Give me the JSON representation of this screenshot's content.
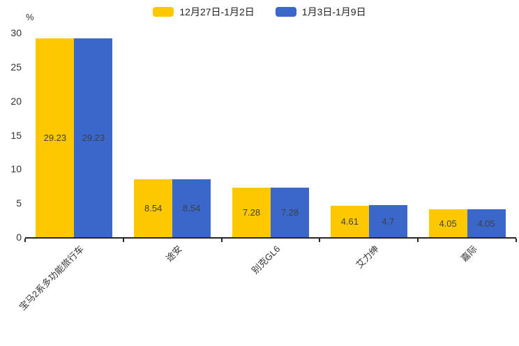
{
  "chart_data": {
    "type": "bar",
    "title": "",
    "xlabel": "",
    "ylabel": "%",
    "categories": [
      "宝马2系多功能旅行车",
      "途安",
      "别克GL6",
      "艾力绅",
      "嘉际"
    ],
    "series": [
      {
        "name": "12月27日-1月2日",
        "color": "#FDC800",
        "values": [
          29.23,
          8.54,
          7.28,
          4.61,
          4.05
        ]
      },
      {
        "name": "1月3日-1月9日",
        "color": "#3A67C9",
        "values": [
          29.23,
          8.54,
          7.28,
          4.7,
          4.05
        ]
      }
    ],
    "yticks": [
      0,
      5,
      10,
      15,
      20,
      25,
      30
    ],
    "ylim": [
      0,
      30
    ],
    "grid": false,
    "legend_position": "top",
    "value_label_position": "inside-center",
    "xtick_rotation": 45
  },
  "colors": {
    "series_yellow": "#FDC800",
    "series_blue": "#3A67C9",
    "axis_line": "#262626",
    "tick_text": "#333333",
    "value_text": "#3F3F3F",
    "legend_text": "#1F1F1F",
    "background": "#FFFFFF"
  }
}
